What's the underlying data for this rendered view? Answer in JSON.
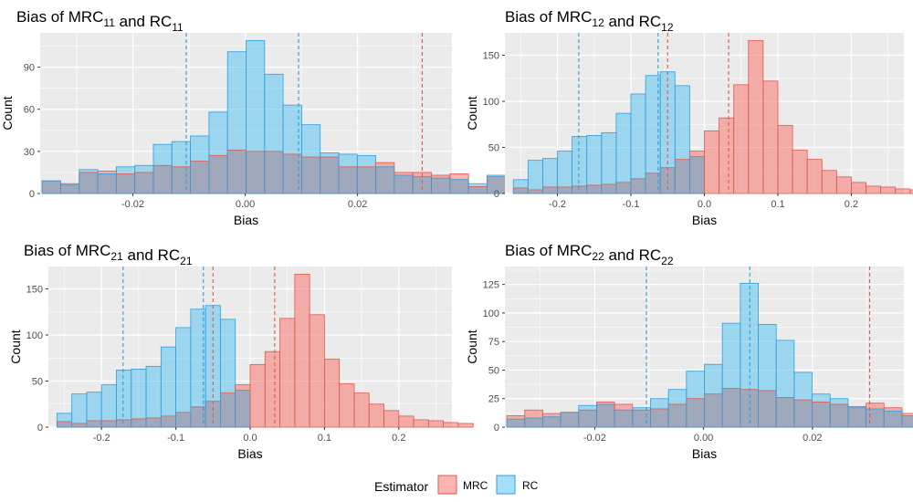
{
  "legend": {
    "title": "Estimator",
    "position": "bottom",
    "items": [
      {
        "label": "MRC",
        "fill": "#F8766D",
        "stroke": "#E0584F"
      },
      {
        "label": "RC",
        "fill": "#5BC2F0",
        "stroke": "#2E9FDB"
      }
    ]
  },
  "colors": {
    "panel_background": "#EBEBEB",
    "grid": "#FFFFFF",
    "mrc_fill": "#F8766D",
    "mrc_stroke": "#E0584F",
    "rc_fill": "#5BC2F0",
    "rc_stroke": "#2E9FDB",
    "overlap_fill": "#A0A8BC",
    "mrc_vline": "#E0584F",
    "rc_vline": "#2E9FDB",
    "axis_text": "#4D4D4D"
  },
  "chart_data": [
    {
      "type": "bar",
      "title_prefix": "Bias of MRC",
      "title_subscript": "11",
      "title_middle": " and RC",
      "title_subscript2": "11",
      "xlabel": "Bias",
      "ylabel": "Count",
      "x_start": -0.0345,
      "bin_width": 0.0033,
      "xlim": [
        -0.0365,
        0.0368
      ],
      "ylim": [
        0,
        109
      ],
      "xticks": [
        -0.02,
        0.0,
        0.02
      ],
      "xtick_labels": [
        "-0.02",
        "0.00",
        "0.02"
      ],
      "yticks": [
        0,
        30,
        60,
        90
      ],
      "ytick_labels": [
        "0",
        "30",
        "60",
        "90"
      ],
      "grid": true,
      "series": [
        {
          "name": "MRC",
          "values": [
            9,
            7,
            15,
            16,
            14,
            15,
            20,
            19,
            23,
            27,
            31,
            30,
            30,
            28,
            26,
            26,
            19,
            19,
            22,
            15,
            15,
            13,
            14,
            5,
            12
          ]
        },
        {
          "name": "RC",
          "values": [
            9,
            6,
            17,
            14,
            19,
            20,
            35,
            37,
            41,
            58,
            101,
            109,
            85,
            63,
            49,
            29,
            28,
            27,
            19,
            13,
            12,
            11,
            10,
            7,
            13
          ]
        }
      ],
      "vlines": [
        {
          "series": "MRC",
          "x": 0.0315
        },
        {
          "series": "RC",
          "x": -0.0105
        },
        {
          "series": "RC",
          "x": 0.0095
        }
      ]
    },
    {
      "type": "bar",
      "title_prefix": "Bias of MRC",
      "title_subscript": "12",
      "title_middle": " and RC",
      "title_subscript2": "12",
      "xlabel": "Bias",
      "ylabel": "Count",
      "x_start": -0.25,
      "bin_width": 0.02,
      "xlim": [
        -0.2715,
        0.2715
      ],
      "ylim": [
        0,
        166
      ],
      "xticks": [
        -0.2,
        -0.1,
        0.0,
        0.1,
        0.2
      ],
      "xtick_labels": [
        "-0.2",
        "-0.1",
        "0.0",
        "0.1",
        "0.2"
      ],
      "yticks": [
        0,
        50,
        100,
        150
      ],
      "ytick_labels": [
        "0",
        "50",
        "100",
        "150"
      ],
      "grid": true,
      "series": [
        {
          "name": "MRC",
          "values": [
            6,
            4,
            7,
            7,
            8,
            9,
            10,
            12,
            16,
            22,
            28,
            37,
            46,
            68,
            82,
            118,
            166,
            122,
            74,
            47,
            37,
            25,
            18,
            12,
            8,
            7,
            5,
            4
          ]
        },
        {
          "name": "RC",
          "values": [
            15,
            36,
            38,
            46,
            62,
            63,
            66,
            87,
            108,
            128,
            132,
            117,
            40,
            0,
            0,
            0,
            0,
            0,
            0,
            0,
            0,
            0,
            0,
            0,
            0,
            0,
            0,
            0
          ]
        }
      ],
      "vlines": [
        {
          "series": "MRC",
          "x": -0.05
        },
        {
          "series": "MRC",
          "x": 0.033
        },
        {
          "series": "RC",
          "x": -0.171
        },
        {
          "series": "RC",
          "x": -0.063
        }
      ]
    },
    {
      "type": "bar",
      "title_prefix": "Bias of MRC",
      "title_subscript": "21",
      "title_middle": " and RC",
      "title_subscript2": "21",
      "xlabel": "Bias",
      "ylabel": "Count",
      "x_start": -0.25,
      "bin_width": 0.02,
      "xlim": [
        -0.2715,
        0.2715
      ],
      "ylim": [
        0,
        166
      ],
      "xticks": [
        -0.2,
        -0.1,
        0.0,
        0.1,
        0.2
      ],
      "xtick_labels": [
        "-0.2",
        "-0.1",
        "0.0",
        "0.1",
        "0.2"
      ],
      "yticks": [
        0,
        50,
        100,
        150
      ],
      "ytick_labels": [
        "0",
        "50",
        "100",
        "150"
      ],
      "grid": true,
      "series": [
        {
          "name": "MRC",
          "values": [
            6,
            4,
            7,
            7,
            8,
            9,
            10,
            12,
            16,
            22,
            28,
            37,
            46,
            68,
            82,
            118,
            166,
            122,
            74,
            47,
            37,
            25,
            18,
            12,
            8,
            7,
            5,
            4
          ]
        },
        {
          "name": "RC",
          "values": [
            15,
            36,
            38,
            46,
            62,
            63,
            66,
            87,
            108,
            128,
            132,
            117,
            40,
            0,
            0,
            0,
            0,
            0,
            0,
            0,
            0,
            0,
            0,
            0,
            0,
            0,
            0,
            0
          ]
        }
      ],
      "vlines": [
        {
          "series": "MRC",
          "x": -0.05
        },
        {
          "series": "MRC",
          "x": 0.033
        },
        {
          "series": "RC",
          "x": -0.171
        },
        {
          "series": "RC",
          "x": -0.063
        }
      ]
    },
    {
      "type": "bar",
      "title_prefix": "Bias of MRC",
      "title_subscript": "22",
      "title_middle": " and RC",
      "title_subscript2": "22",
      "xlabel": "Bias",
      "ylabel": "Count",
      "x_start": -0.0345,
      "bin_width": 0.0033,
      "xlim": [
        -0.0365,
        0.0368
      ],
      "ylim": [
        0,
        134
      ],
      "xticks": [
        -0.02,
        0.0,
        0.02
      ],
      "xtick_labels": [
        "-0.02",
        "0.00",
        "0.02"
      ],
      "yticks": [
        0,
        25,
        50,
        75,
        100,
        125
      ],
      "ytick_labels": [
        "0",
        "25",
        "50",
        "75",
        "100",
        "125"
      ],
      "grid": true,
      "series": [
        {
          "name": "MRC",
          "values": [
            10,
            15,
            12,
            13,
            15,
            22,
            20,
            15,
            16,
            20,
            25,
            29,
            34,
            33,
            32,
            26,
            24,
            22,
            20,
            18,
            21,
            17,
            12,
            13,
            7
          ]
        },
        {
          "name": "RC",
          "values": [
            7,
            8,
            9,
            13,
            19,
            20,
            15,
            17,
            25,
            33,
            49,
            55,
            91,
            126,
            90,
            76,
            48,
            29,
            25,
            17,
            16,
            14,
            10,
            9,
            8
          ]
        }
      ],
      "vlines": [
        {
          "series": "MRC",
          "x": 0.0305
        },
        {
          "series": "RC",
          "x": -0.0105
        },
        {
          "series": "RC",
          "x": 0.0085
        }
      ]
    }
  ]
}
